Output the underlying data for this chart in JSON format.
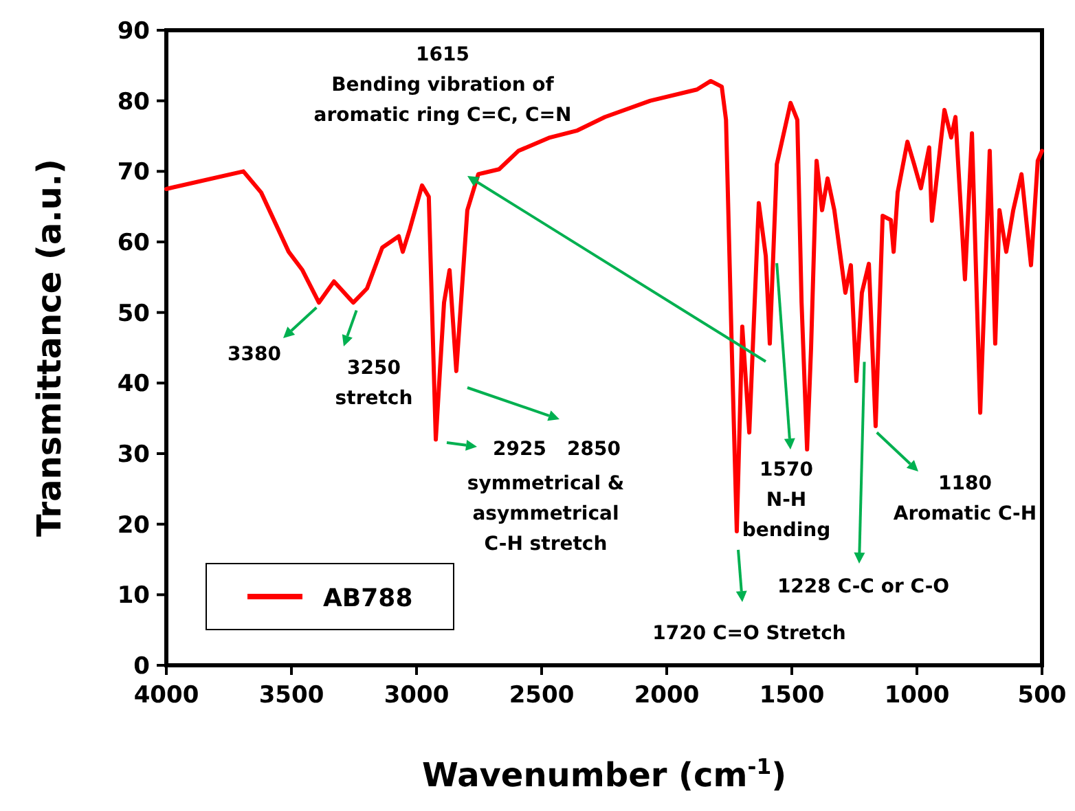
{
  "chart_data": {
    "type": "line",
    "xlabel": "Wavenumber (cm$^{-1}$)",
    "ylabel": "Transmittance (a.u.)",
    "xlim": [
      4000,
      500
    ],
    "xticks": [
      4000,
      3500,
      3000,
      2500,
      2000,
      1500,
      1000,
      500
    ],
    "ylim": [
      0,
      90
    ],
    "yticks": [
      0,
      10,
      20,
      30,
      40,
      50,
      60,
      70,
      80,
      90
    ],
    "grid": false,
    "legend": "bottom left",
    "marker": "none",
    "line_style": "solid",
    "series": [
      {
        "name": "AB788",
        "color": "#ff0000",
        "x": [
          4000,
          3989,
          3692,
          3621,
          3511,
          3456,
          3390,
          3330,
          3253,
          3198,
          3137,
          3071,
          3055,
          3027,
          2978,
          2951,
          2923,
          2890,
          2868,
          2841,
          2797,
          2753,
          2670,
          2593,
          2467,
          2357,
          2247,
          2066,
          1879,
          1824,
          1780,
          1763,
          1740,
          1720,
          1698,
          1670,
          1632,
          1604,
          1588,
          1560,
          1505,
          1478,
          1461,
          1439,
          1423,
          1401,
          1379,
          1357,
          1330,
          1286,
          1264,
          1242,
          1220,
          1192,
          1165,
          1137,
          1104,
          1093,
          1077,
          1038,
          1011,
          984,
          951,
          940,
          890,
          863,
          846,
          808,
          780,
          747,
          709,
          687,
          670,
          643,
          615,
          582,
          544,
          517,
          500
        ],
        "values": [
          67.5,
          67.6,
          70,
          67,
          58.6,
          56,
          51.4,
          54.4,
          51.4,
          53.4,
          59.2,
          60.8,
          58.6,
          61.8,
          68,
          66.4,
          32,
          51.4,
          56,
          41.7,
          64.5,
          69.6,
          70.3,
          72.9,
          74.8,
          75.8,
          77.7,
          80,
          81.6,
          82.8,
          82,
          77.3,
          45,
          19,
          48,
          33,
          65.5,
          58,
          45.6,
          71,
          79.7,
          77.3,
          51.4,
          30.6,
          45,
          71.5,
          64.5,
          69,
          64.5,
          52.8,
          56.7,
          40.3,
          52.8,
          56.9,
          33.9,
          63.7,
          63.1,
          58.6,
          67,
          74.2,
          71,
          67.6,
          73.4,
          63,
          78.7,
          74.8,
          77.7,
          54.7,
          75.4,
          35.8,
          72.9,
          45.6,
          64.5,
          58.6,
          64.5,
          69.6,
          56.7,
          71.5,
          72.9
        ]
      }
    ],
    "annotations": [
      {
        "text": "3380",
        "x": 3400,
        "y": 50.7
      },
      {
        "text": "3250\nstretch",
        "x": 3240,
        "y": 50.3
      },
      "2925",
      "2850",
      "symmetrical &\nasymmetrical\nC-H stretch",
      "1615\nBending vibration of\naromatic ring C=C, C=N",
      {
        "text": "1570\nN-H\nbending",
        "x": 1560,
        "y": 57
      },
      "1720 C=O Stretch",
      {
        "text": "1228 C-C or C-O",
        "x": 1210,
        "y": 43
      },
      {
        "text": "1180\nAromatic C-H",
        "x": 1160,
        "y": 33
      }
    ]
  }
}
